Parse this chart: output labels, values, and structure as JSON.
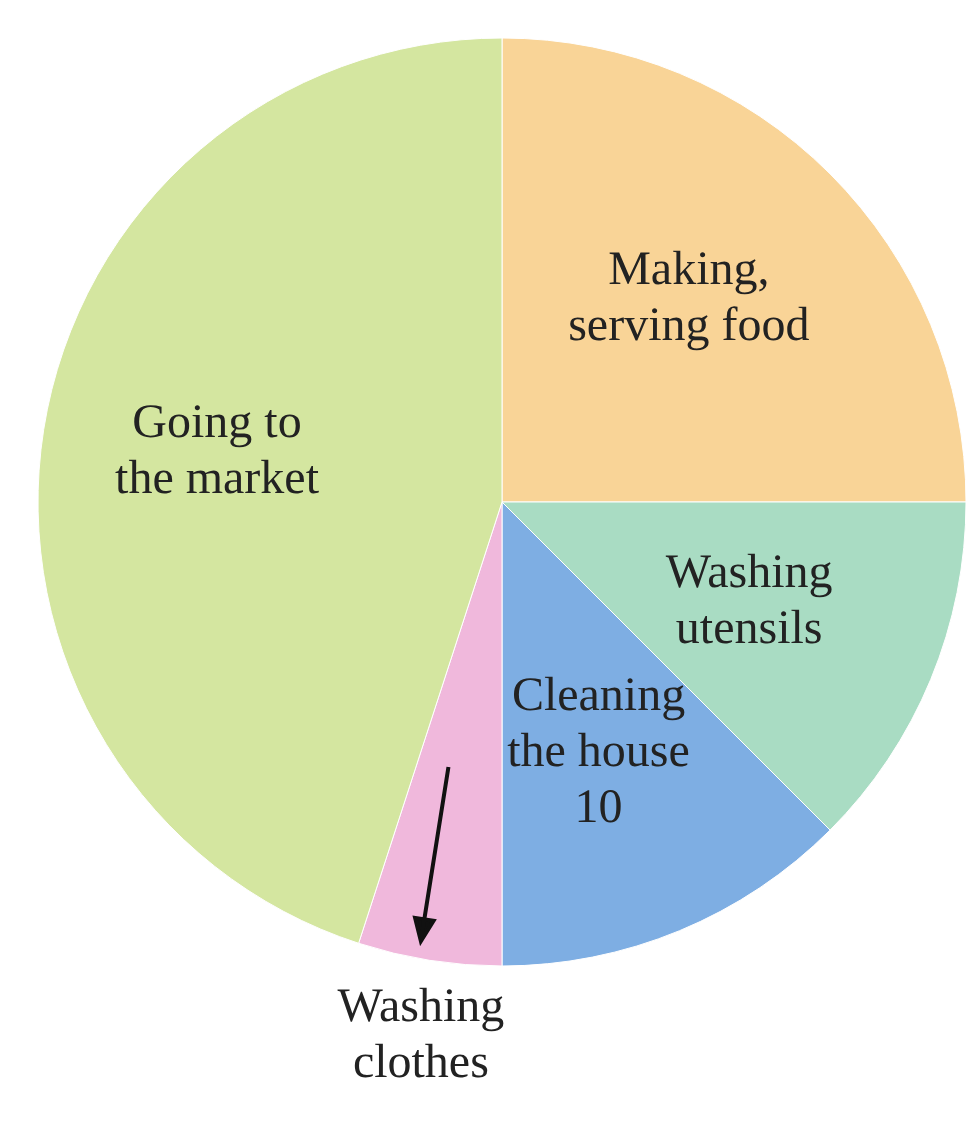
{
  "chart_data": {
    "type": "pie",
    "categories": [
      "Making, serving food",
      "Washing utensils",
      "Cleaning the house",
      "Washing clothes",
      "Going to the market"
    ],
    "values": [
      20,
      10,
      10,
      4,
      36
    ],
    "value_labels": [
      null,
      null,
      "10",
      null,
      null
    ],
    "colors": [
      "#f9d497",
      "#a9dcc3",
      "#7eaee3",
      "#f0b8dc",
      "#d4e6a0"
    ]
  }
}
